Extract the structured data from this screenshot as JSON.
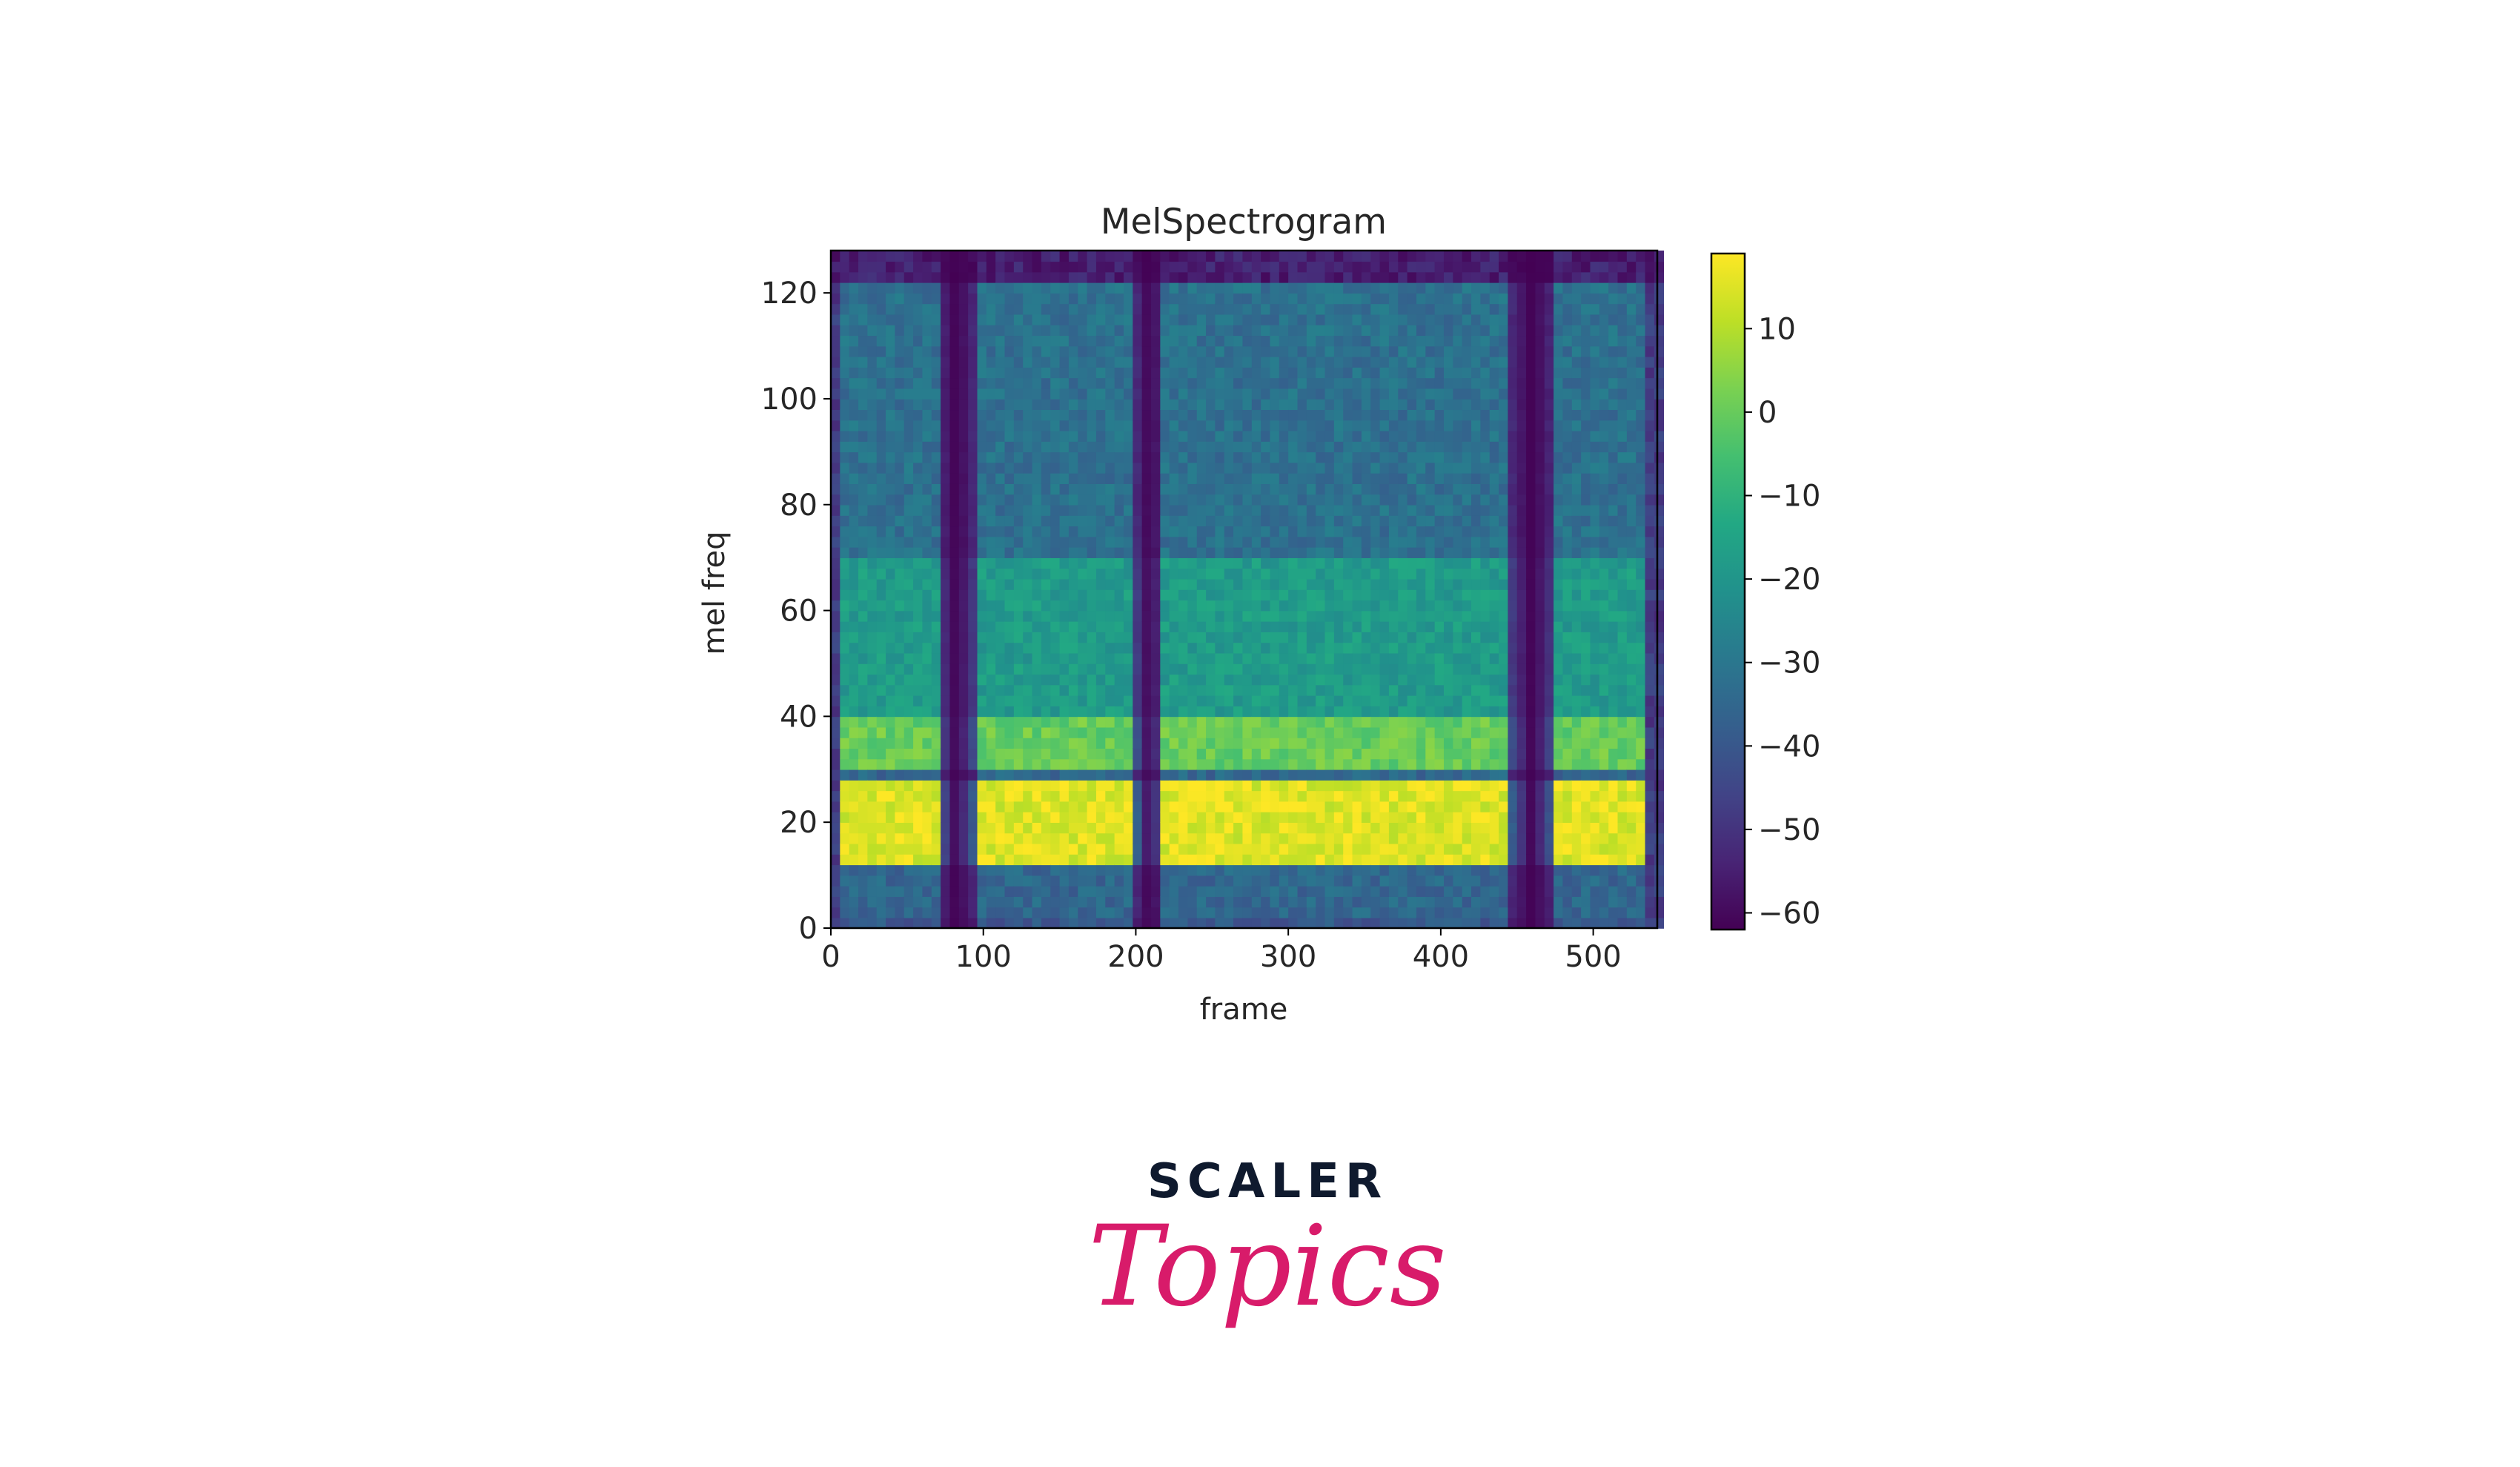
{
  "chart_data": {
    "type": "heatmap",
    "title": "MelSpectrogram",
    "xlabel": "frame",
    "ylabel": "mel freq",
    "xlim": [
      0,
      542
    ],
    "ylim": [
      0,
      128
    ],
    "xticks": [
      0,
      100,
      200,
      300,
      400,
      500
    ],
    "xtick_labels": [
      "0",
      "100",
      "200",
      "300",
      "400",
      "500"
    ],
    "yticks": [
      0,
      20,
      40,
      60,
      80,
      100,
      120
    ],
    "ytick_labels": [
      "0",
      "20",
      "40",
      "60",
      "80",
      "100",
      "120"
    ],
    "colormap": "viridis",
    "colorbar": {
      "range": [
        -62,
        19
      ],
      "ticks": [
        10,
        0,
        -10,
        -20,
        -30,
        -40,
        -50,
        -60
      ],
      "tick_labels": [
        "10",
        "0",
        "−10",
        "−20",
        "−30",
        "−40",
        "−50",
        "−60"
      ]
    },
    "silent_gaps_frames": [
      [
        70,
        95
      ],
      [
        200,
        218
      ],
      [
        445,
        475
      ]
    ],
    "bands": [
      {
        "mel_range": [
          13,
          27
        ],
        "level_db": 15
      },
      {
        "mel_range": [
          30,
          40
        ],
        "level_db": 0
      },
      {
        "mel_range": [
          41,
          70
        ],
        "level_db": -18
      },
      {
        "mel_range": [
          71,
          128
        ],
        "level_db": -32
      }
    ],
    "grid": false
  },
  "brand": {
    "top": "SCALER",
    "bottom": "Topics",
    "top_color": "#0f1a2e",
    "bottom_color": "#d81b6a"
  }
}
